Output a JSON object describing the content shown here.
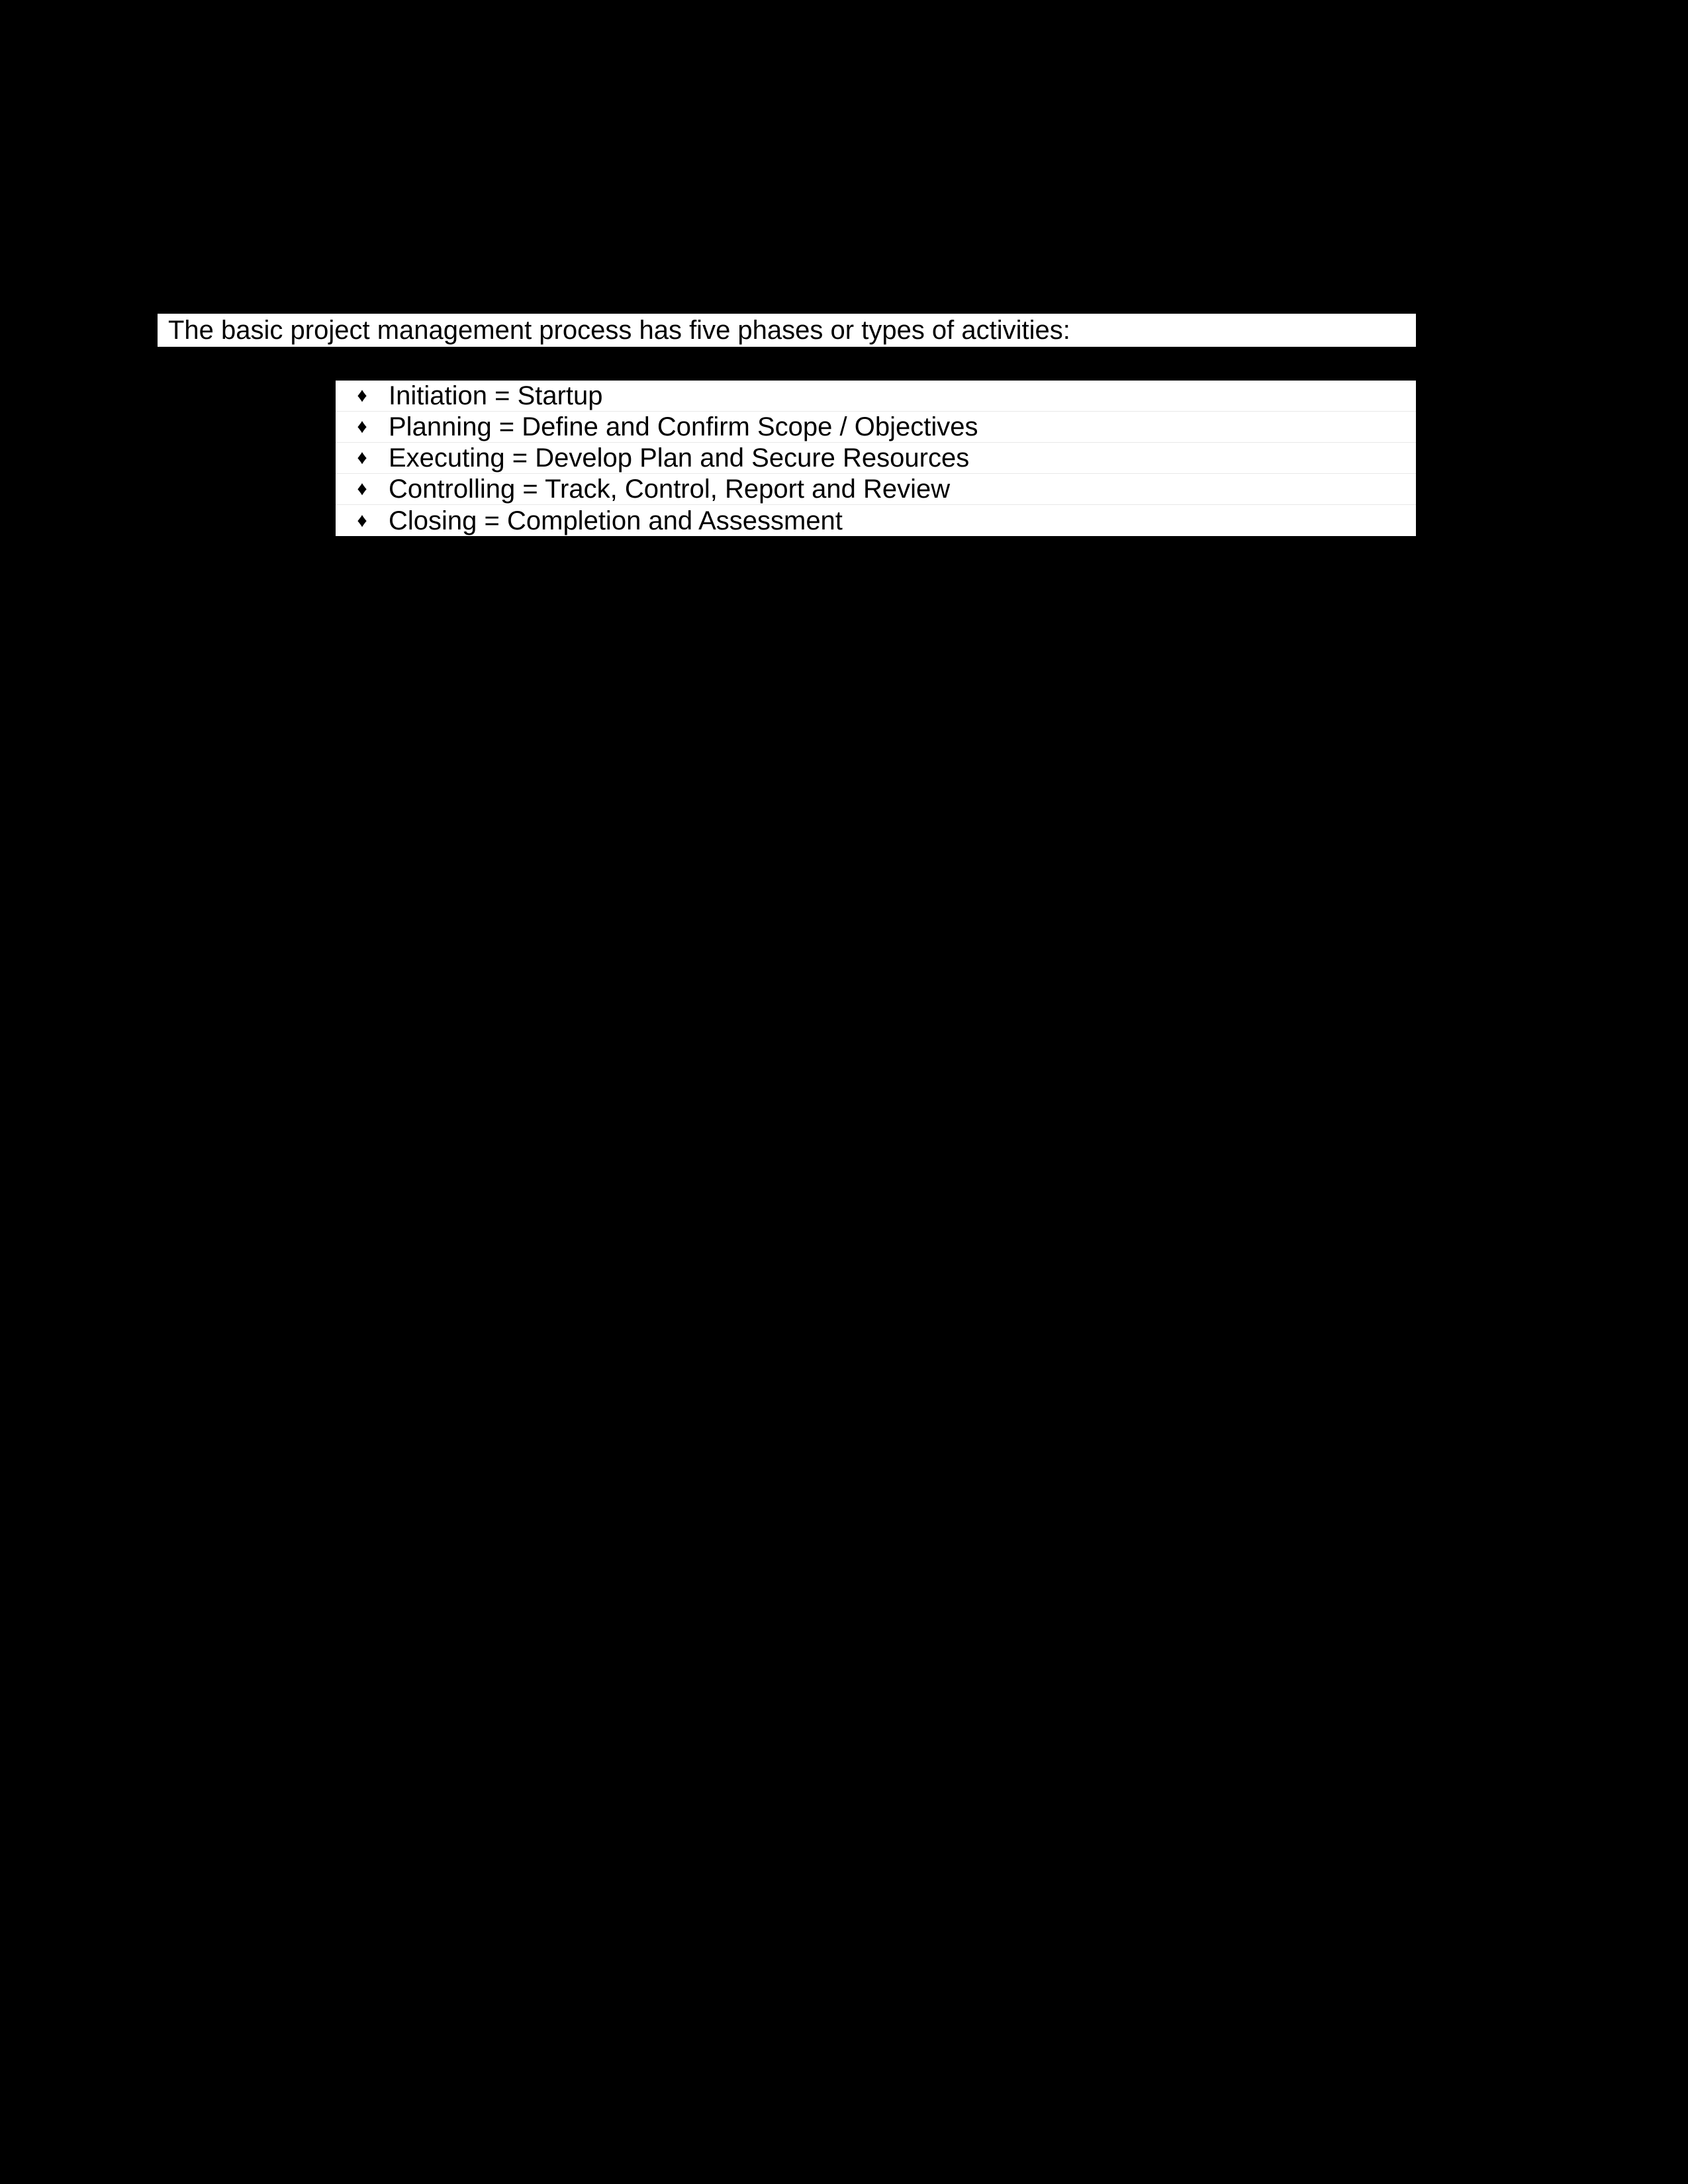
{
  "document": {
    "background_color": "#000000",
    "text_block": {
      "background_color": "#ffffff",
      "text_color": "#000000",
      "font_size_pt": 30
    },
    "intro": "The basic project management process has five phases or types of activities:",
    "bullet_glyph": "♦",
    "items": [
      "Initiation = Startup",
      "Planning = Define and Confirm Scope / Objectives",
      "Executing = Develop Plan and Secure Resources",
      "Controlling = Track, Control, Report and Review",
      "Closing = Completion and Assessment"
    ]
  }
}
